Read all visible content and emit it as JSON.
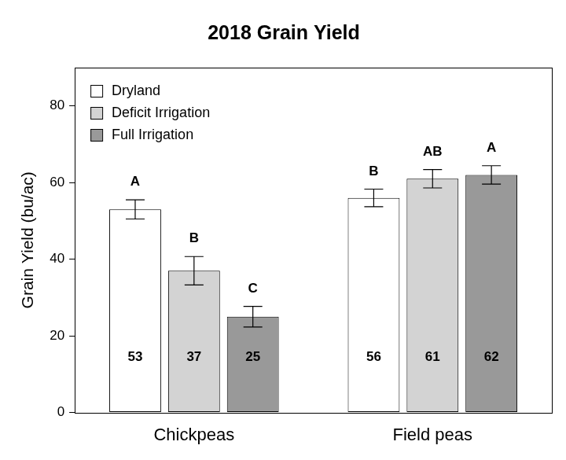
{
  "chart_data": {
    "type": "bar",
    "title": "2018 Grain Yield",
    "y_label": "Grain Yield (bu/ac)",
    "categories": [
      "Chickpeas",
      "Field peas"
    ],
    "series": [
      {
        "name": "Dryland",
        "color": "#ffffff",
        "values": [
          53,
          56
        ],
        "error": [
          2.5,
          2.3
        ],
        "letters": [
          "A",
          "B"
        ]
      },
      {
        "name": "Deficit Irrigation",
        "color": "#d3d3d3",
        "values": [
          37,
          61
        ],
        "error": [
          3.7,
          2.4
        ],
        "letters": [
          "B",
          "AB"
        ]
      },
      {
        "name": "Full Irrigation",
        "color": "#999999",
        "values": [
          25,
          62
        ],
        "error": [
          2.7,
          2.4
        ],
        "letters": [
          "C",
          "A"
        ]
      }
    ],
    "ylim": [
      0,
      90
    ],
    "yticks": [
      0,
      20,
      40,
      60,
      80
    ],
    "grid": false,
    "legend": "upper left",
    "data_labels": true
  }
}
